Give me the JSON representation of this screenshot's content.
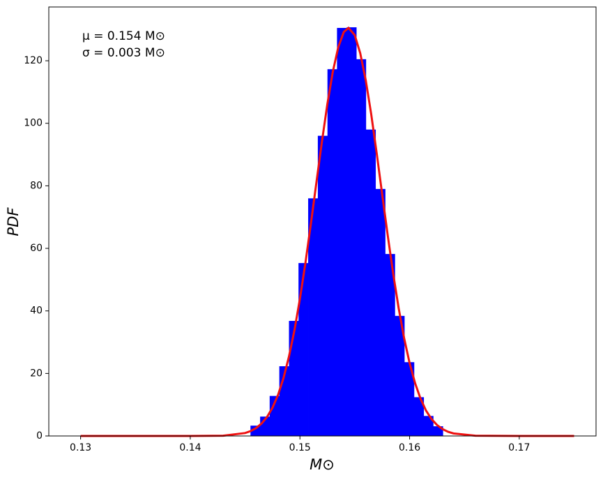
{
  "chart_data": {
    "type": "histogram",
    "annotations": [
      "μ = 0.154 M⊙",
      "σ = 0.003 M⊙"
    ],
    "xlabel": "M⊙",
    "ylabel": "PDF",
    "bins": [
      0.14549,
      0.14637,
      0.14724,
      0.14812,
      0.149,
      0.14987,
      0.15075,
      0.15163,
      0.15251,
      0.15338,
      0.15426,
      0.15514,
      0.15601,
      0.15689,
      0.15777,
      0.15865,
      0.15952,
      0.1604,
      0.16128,
      0.16215,
      0.16303
    ],
    "counts": [
      3.3,
      6.2,
      12.8,
      22.3,
      36.8,
      55.3,
      76,
      96,
      117.3,
      130.5,
      130.7,
      120.5,
      98,
      79,
      58.2,
      38.4,
      23.6,
      12.4,
      6.4,
      3.1
    ],
    "color": "#0000ff",
    "fit": {
      "type": "line",
      "color": "#ee1111",
      "x": [
        0.13,
        0.135,
        0.14,
        0.143,
        0.145,
        0.1455,
        0.146,
        0.1465,
        0.147,
        0.1475,
        0.148,
        0.1485,
        0.149,
        0.1495,
        0.15,
        0.1505,
        0.151,
        0.1515,
        0.152,
        0.1525,
        0.153,
        0.1535,
        0.154,
        0.15443,
        0.155,
        0.1555,
        0.156,
        0.1565,
        0.157,
        0.1575,
        0.158,
        0.1585,
        0.159,
        0.1595,
        0.16,
        0.1605,
        0.161,
        0.1615,
        0.162,
        0.1625,
        0.163,
        0.1635,
        0.164,
        0.166,
        0.17,
        0.175
      ],
      "values": [
        0,
        0,
        0.001,
        0.09,
        0.93,
        1.55,
        2.52,
        3.97,
        6.08,
        9.05,
        13.1,
        18.5,
        25.4,
        33.8,
        43.9,
        55.3,
        67.9,
        81,
        94,
        106.1,
        116.5,
        124.4,
        129.2,
        130.5,
        128.2,
        122.4,
        113.8,
        102.9,
        90.4,
        77.3,
        64.3,
        52,
        40.9,
        31.3,
        23.3,
        16.9,
        11.9,
        8.1,
        5.4,
        3.5,
        2.2,
        1.35,
        0.81,
        0.08,
        0,
        0
      ]
    },
    "xlim": [
      0.1271,
      0.177
    ],
    "ylim": [
      0,
      137.2
    ],
    "xticks": [
      0.13,
      0.14,
      0.15,
      0.16,
      0.17
    ],
    "yticks": [
      0,
      20,
      40,
      60,
      80,
      100,
      120
    ]
  }
}
